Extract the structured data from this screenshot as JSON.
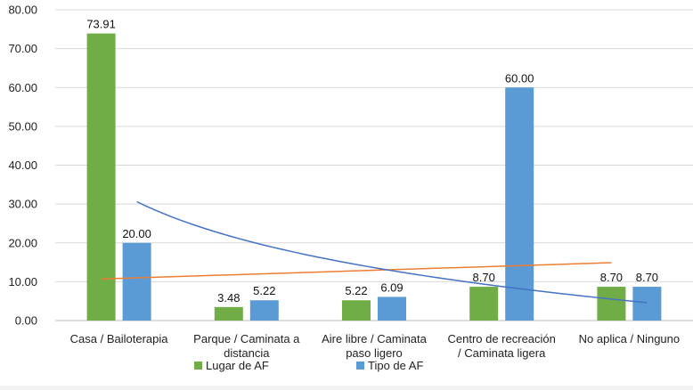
{
  "chart_data": {
    "type": "bar",
    "categories": [
      [
        "Casa / Bailoterapia"
      ],
      [
        "Parque / Caminata a",
        "distancia"
      ],
      [
        "Aire libre / Caminata",
        "paso ligero"
      ],
      [
        "Centro de recreación",
        "/ Caminata ligera"
      ],
      [
        "No aplica / Ninguno"
      ]
    ],
    "series": [
      {
        "name": "Lugar de AF",
        "color": "#70ad47",
        "values": [
          73.91,
          3.48,
          5.22,
          8.7,
          8.7
        ],
        "labels": [
          "73.91",
          "3.48",
          "5.22",
          "8.70",
          "8.70"
        ]
      },
      {
        "name": "Tipo de AF",
        "color": "#5b9bd5",
        "values": [
          20.0,
          5.22,
          6.09,
          60.0,
          8.7
        ],
        "labels": [
          "20.00",
          "5.22",
          "6.09",
          "60.00",
          "8.70"
        ]
      }
    ],
    "trendlines": [
      {
        "series": "Lugar de AF",
        "kind": "linear",
        "color": "#ed7d31",
        "start_value": 10.7,
        "end_value": 14.9
      },
      {
        "series": "Tipo de AF",
        "kind": "logarithmic",
        "color": "#4472c4",
        "start_value": 30.6,
        "end_value": 4.6
      }
    ],
    "ylim": [
      0,
      80
    ],
    "yticks": [
      "0.00",
      "10.00",
      "20.00",
      "30.00",
      "40.00",
      "50.00",
      "60.00",
      "70.00",
      "80.00"
    ],
    "grid": true,
    "legend_position": "bottom",
    "title": "",
    "xlabel": "",
    "ylabel": ""
  }
}
